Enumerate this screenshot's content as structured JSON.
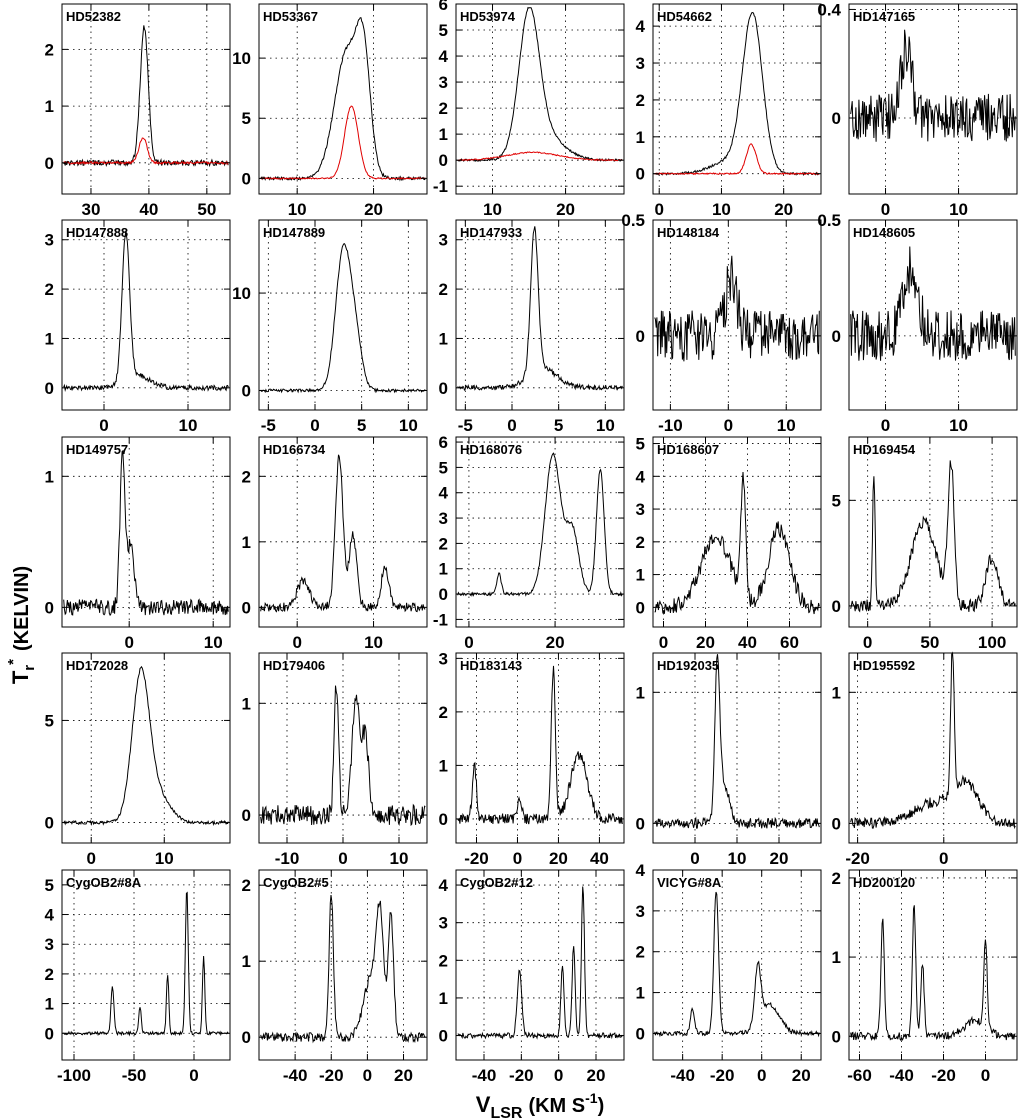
{
  "figure": {
    "y_axis_title": "T",
    "y_axis_title_sub": "r",
    "y_axis_title_sup": "*",
    "y_axis_title_unit": "(KELVIN)",
    "x_axis_title": "V",
    "x_axis_title_sub": "LSR",
    "x_axis_title_unit": "(KM S",
    "x_axis_title_sup": "-1",
    "x_axis_title_close": ")"
  },
  "chart_data": [
    {
      "type": "line",
      "title": "HD52382",
      "xlim": [
        25,
        54
      ],
      "ylim": [
        -0.55,
        2.8
      ],
      "xticks": [
        30,
        40,
        50
      ],
      "yticks": [
        0,
        1,
        2
      ],
      "series": [
        {
          "color": "#000000",
          "noise": 0.05,
          "peaks": [
            {
              "x": 39.2,
              "a": 2.4,
              "w": 0.7
            }
          ]
        },
        {
          "color": "#e00000",
          "noise": 0.02,
          "peaks": [
            {
              "x": 39.0,
              "a": 0.45,
              "w": 0.7
            }
          ]
        }
      ]
    },
    {
      "type": "line",
      "title": "HD53367",
      "xlim": [
        5,
        27
      ],
      "ylim": [
        -1.3,
        14.5
      ],
      "xticks": [
        10,
        20
      ],
      "yticks": [
        0,
        5,
        10
      ],
      "series": [
        {
          "color": "#000000",
          "noise": 0.12,
          "peaks": [
            {
              "x": 16.5,
              "a": 10.5,
              "w": 1.6
            },
            {
              "x": 18.7,
              "a": 8.5,
              "w": 0.9
            }
          ]
        },
        {
          "color": "#e00000",
          "noise": 0.05,
          "peaks": [
            {
              "x": 17.1,
              "a": 6.0,
              "w": 0.9
            }
          ]
        }
      ]
    },
    {
      "type": "line",
      "title": "HD53974",
      "xlim": [
        5,
        28
      ],
      "ylim": [
        -1.3,
        6.0
      ],
      "xticks": [
        10,
        20
      ],
      "yticks": [
        -1,
        0,
        1,
        2,
        3,
        4,
        5,
        6
      ],
      "series": [
        {
          "color": "#000000",
          "noise": 0.04,
          "peaks": [
            {
              "x": 15.0,
              "a": 5.3,
              "w": 1.4
            },
            {
              "x": 17.3,
              "a": 0.9,
              "w": 2.5
            }
          ]
        },
        {
          "color": "#e00000",
          "noise": 0.02,
          "peaks": [
            {
              "x": 15.5,
              "a": 0.3,
              "w": 3.5
            }
          ]
        }
      ]
    },
    {
      "type": "line",
      "title": "HD54662",
      "xlim": [
        -1,
        26
      ],
      "ylim": [
        -0.55,
        4.6
      ],
      "xticks": [
        0,
        10,
        20
      ],
      "yticks": [
        0,
        1,
        2,
        3,
        4
      ],
      "series": [
        {
          "color": "#000000",
          "noise": 0.03,
          "peaks": [
            {
              "x": 15.0,
              "a": 4.2,
              "w": 1.6
            },
            {
              "x": 11.5,
              "a": 0.35,
              "w": 3.0
            }
          ]
        },
        {
          "color": "#e00000",
          "noise": 0.02,
          "peaks": [
            {
              "x": 14.8,
              "a": 0.8,
              "w": 0.8
            }
          ]
        }
      ]
    },
    {
      "type": "line",
      "title": "HD147165",
      "xlim": [
        -5,
        18
      ],
      "ylim": [
        -0.28,
        0.42
      ],
      "xticks": [
        0,
        10
      ],
      "yticks": [
        0,
        0.4
      ],
      "series": [
        {
          "color": "#000000",
          "noise": 0.09,
          "peaks": [
            {
              "x": 2.8,
              "a": 0.25,
              "w": 0.8
            }
          ]
        }
      ]
    },
    {
      "type": "line",
      "title": "HD147888",
      "xlim": [
        -5,
        15
      ],
      "ylim": [
        -0.45,
        3.4
      ],
      "xticks": [
        0,
        10
      ],
      "yticks": [
        0,
        1,
        2,
        3
      ],
      "series": [
        {
          "color": "#000000",
          "noise": 0.05,
          "peaks": [
            {
              "x": 2.6,
              "a": 3.0,
              "w": 0.45
            },
            {
              "x": 4.0,
              "a": 0.25,
              "w": 1.5
            }
          ]
        }
      ]
    },
    {
      "type": "line",
      "title": "HD147889",
      "xlim": [
        -6,
        12
      ],
      "ylim": [
        -2,
        17.5
      ],
      "xticks": [
        -5,
        0,
        5,
        10
      ],
      "yticks": [
        0,
        10
      ],
      "series": [
        {
          "color": "#000000",
          "noise": 0.15,
          "peaks": [
            {
              "x": 3.0,
              "a": 14.0,
              "w": 0.8
            },
            {
              "x": 4.3,
              "a": 5.0,
              "w": 0.7
            }
          ]
        }
      ]
    },
    {
      "type": "line",
      "title": "HD147933",
      "xlim": [
        -6,
        12
      ],
      "ylim": [
        -0.45,
        3.4
      ],
      "xticks": [
        -5,
        0,
        5,
        10
      ],
      "yticks": [
        0,
        1,
        2,
        3
      ],
      "series": [
        {
          "color": "#000000",
          "noise": 0.05,
          "peaks": [
            {
              "x": 2.4,
              "a": 2.9,
              "w": 0.4
            },
            {
              "x": 3.3,
              "a": 0.4,
              "w": 1.5
            }
          ]
        }
      ]
    },
    {
      "type": "line",
      "title": "HD148184",
      "xlim": [
        -13,
        16
      ],
      "ylim": [
        -0.32,
        0.5
      ],
      "xticks": [
        -10,
        0,
        10
      ],
      "yticks": [
        0,
        0.5
      ],
      "series": [
        {
          "color": "#000000",
          "noise": 0.11,
          "peaks": [
            {
              "x": 0.5,
              "a": 0.25,
              "w": 1.0
            }
          ]
        }
      ]
    },
    {
      "type": "line",
      "title": "HD148605",
      "xlim": [
        -5,
        18
      ],
      "ylim": [
        -0.32,
        0.5
      ],
      "xticks": [
        0,
        10
      ],
      "yticks": [
        0,
        0.5
      ],
      "series": [
        {
          "color": "#000000",
          "noise": 0.11,
          "peaks": [
            {
              "x": 3.5,
              "a": 0.3,
              "w": 1.0
            }
          ]
        }
      ]
    },
    {
      "type": "line",
      "title": "HD149757",
      "xlim": [
        -8,
        12
      ],
      "ylim": [
        -0.15,
        1.3
      ],
      "xticks": [
        0,
        10
      ],
      "yticks": [
        0,
        1
      ],
      "series": [
        {
          "color": "#000000",
          "noise": 0.06,
          "peaks": [
            {
              "x": -0.8,
              "a": 1.15,
              "w": 0.3
            },
            {
              "x": 0.2,
              "a": 0.5,
              "w": 0.4
            }
          ]
        }
      ]
    },
    {
      "type": "line",
      "title": "HD166734",
      "xlim": [
        -5,
        17
      ],
      "ylim": [
        -0.3,
        2.6
      ],
      "xticks": [
        0,
        10
      ],
      "yticks": [
        0,
        1,
        2
      ],
      "series": [
        {
          "color": "#000000",
          "noise": 0.07,
          "peaks": [
            {
              "x": 5.5,
              "a": 2.3,
              "w": 0.5
            },
            {
              "x": 7.3,
              "a": 1.1,
              "w": 0.5
            },
            {
              "x": 11.5,
              "a": 0.6,
              "w": 0.5
            },
            {
              "x": 0.8,
              "a": 0.4,
              "w": 0.8
            }
          ]
        }
      ]
    },
    {
      "type": "line",
      "title": "HD168076",
      "xlim": [
        -3,
        36
      ],
      "ylim": [
        -1.3,
        6.2
      ],
      "xticks": [
        0,
        20
      ],
      "yticks": [
        -1,
        0,
        1,
        2,
        3,
        4,
        5,
        6
      ],
      "series": [
        {
          "color": "#000000",
          "noise": 0.06,
          "peaks": [
            {
              "x": 19.5,
              "a": 5.5,
              "w": 1.8
            },
            {
              "x": 24.0,
              "a": 2.5,
              "w": 1.5
            },
            {
              "x": 30.5,
              "a": 4.9,
              "w": 0.9
            },
            {
              "x": 7.0,
              "a": 0.8,
              "w": 0.5
            }
          ]
        }
      ]
    },
    {
      "type": "line",
      "title": "HD168607",
      "xlim": [
        -5,
        75
      ],
      "ylim": [
        -0.6,
        5.2
      ],
      "xticks": [
        0,
        20,
        40,
        60
      ],
      "yticks": [
        0,
        1,
        2,
        3,
        4,
        5
      ],
      "series": [
        {
          "color": "#000000",
          "noise": 0.25,
          "peaks": [
            {
              "x": 25,
              "a": 2.2,
              "w": 7
            },
            {
              "x": 38,
              "a": 3.5,
              "w": 1.2
            },
            {
              "x": 55,
              "a": 2.4,
              "w": 5
            }
          ]
        }
      ]
    },
    {
      "type": "line",
      "title": "HD169454",
      "xlim": [
        -15,
        120
      ],
      "ylim": [
        -1.0,
        8.0
      ],
      "xticks": [
        0,
        50,
        100
      ],
      "yticks": [
        0,
        5
      ],
      "series": [
        {
          "color": "#000000",
          "noise": 0.3,
          "peaks": [
            {
              "x": 5,
              "a": 6.3,
              "w": 1
            },
            {
              "x": 45,
              "a": 4.0,
              "w": 10
            },
            {
              "x": 67,
              "a": 6.5,
              "w": 2.5
            },
            {
              "x": 100,
              "a": 2.3,
              "w": 5
            }
          ]
        }
      ]
    },
    {
      "type": "line",
      "title": "HD172028",
      "xlim": [
        -4,
        19
      ],
      "ylim": [
        -1.0,
        8.3
      ],
      "xticks": [
        0,
        10
      ],
      "yticks": [
        0,
        5
      ],
      "series": [
        {
          "color": "#000000",
          "noise": 0.08,
          "peaks": [
            {
              "x": 6.8,
              "a": 7.3,
              "w": 1.2
            },
            {
              "x": 9.5,
              "a": 1.2,
              "w": 1.5
            }
          ]
        }
      ]
    },
    {
      "type": "line",
      "title": "HD179406",
      "xlim": [
        -15,
        15
      ],
      "ylim": [
        -0.25,
        1.45
      ],
      "xticks": [
        -10,
        0,
        10
      ],
      "yticks": [
        0,
        1
      ],
      "series": [
        {
          "color": "#000000",
          "noise": 0.09,
          "peaks": [
            {
              "x": -1.2,
              "a": 1.15,
              "w": 0.4
            },
            {
              "x": 2.3,
              "a": 1.05,
              "w": 0.7
            },
            {
              "x": 4.0,
              "a": 0.7,
              "w": 0.6
            }
          ]
        }
      ]
    },
    {
      "type": "line",
      "title": "HD183143",
      "xlim": [
        -30,
        52
      ],
      "ylim": [
        -0.45,
        3.1
      ],
      "xticks": [
        -20,
        0,
        20,
        40
      ],
      "yticks": [
        0,
        1,
        2,
        3
      ],
      "series": [
        {
          "color": "#000000",
          "noise": 0.1,
          "peaks": [
            {
              "x": -21,
              "a": 1.0,
              "w": 1
            },
            {
              "x": 1,
              "a": 0.4,
              "w": 1
            },
            {
              "x": 17.5,
              "a": 2.8,
              "w": 1
            },
            {
              "x": 30,
              "a": 1.2,
              "w": 4
            }
          ]
        }
      ]
    },
    {
      "type": "line",
      "title": "HD192035",
      "xlim": [
        -10,
        30
      ],
      "ylim": [
        -0.15,
        1.3
      ],
      "xticks": [
        0,
        10,
        20
      ],
      "yticks": [
        0,
        1
      ],
      "series": [
        {
          "color": "#000000",
          "noise": 0.04,
          "peaks": [
            {
              "x": 5.3,
              "a": 1.15,
              "w": 0.6
            },
            {
              "x": 7.0,
              "a": 0.3,
              "w": 1.2
            }
          ]
        }
      ]
    },
    {
      "type": "line",
      "title": "HD195592",
      "xlim": [
        -22,
        17
      ],
      "ylim": [
        -0.15,
        1.3
      ],
      "xticks": [
        -20,
        0
      ],
      "yticks": [
        0,
        1
      ],
      "series": [
        {
          "color": "#000000",
          "noise": 0.04,
          "peaks": [
            {
              "x": 2,
              "a": 1.1,
              "w": 0.4
            },
            {
              "x": 5,
              "a": 0.3,
              "w": 3
            },
            {
              "x": -3,
              "a": 0.15,
              "w": 4
            }
          ]
        }
      ]
    },
    {
      "type": "line",
      "title": "CygOB2#8A",
      "xlim": [
        -110,
        30
      ],
      "ylim": [
        -0.9,
        5.5
      ],
      "xticks": [
        -100,
        -50,
        0
      ],
      "yticks": [
        0,
        1,
        2,
        3,
        4,
        5
      ],
      "series": [
        {
          "color": "#000000",
          "noise": 0.05,
          "peaks": [
            {
              "x": -68,
              "a": 1.6,
              "w": 1.2
            },
            {
              "x": -45,
              "a": 0.9,
              "w": 1
            },
            {
              "x": -22,
              "a": 2.0,
              "w": 1
            },
            {
              "x": -6,
              "a": 4.9,
              "w": 1.2
            },
            {
              "x": 8,
              "a": 2.6,
              "w": 1
            }
          ]
        }
      ]
    },
    {
      "type": "line",
      "title": "CygOB2#5",
      "xlim": [
        -60,
        33
      ],
      "ylim": [
        -0.3,
        2.2
      ],
      "xticks": [
        -40,
        -20,
        0,
        20
      ],
      "yticks": [
        0,
        1,
        2
      ],
      "series": [
        {
          "color": "#000000",
          "noise": 0.06,
          "peaks": [
            {
              "x": -20,
              "a": 1.9,
              "w": 1.2
            },
            {
              "x": 2,
              "a": 0.8,
              "w": 4
            },
            {
              "x": 7,
              "a": 1.4,
              "w": 2
            },
            {
              "x": 13,
              "a": 1.6,
              "w": 1.5
            }
          ]
        }
      ]
    },
    {
      "type": "line",
      "title": "CygOB2#12",
      "xlim": [
        -55,
        35
      ],
      "ylim": [
        -0.65,
        4.4
      ],
      "xticks": [
        -40,
        -20,
        0,
        20
      ],
      "yticks": [
        0,
        1,
        2,
        3,
        4
      ],
      "series": [
        {
          "color": "#000000",
          "noise": 0.07,
          "peaks": [
            {
              "x": -21,
              "a": 1.7,
              "w": 1.2
            },
            {
              "x": 2,
              "a": 1.9,
              "w": 0.8
            },
            {
              "x": 8,
              "a": 2.4,
              "w": 0.8
            },
            {
              "x": 13,
              "a": 4.0,
              "w": 0.8
            }
          ]
        }
      ]
    },
    {
      "type": "line",
      "title": "VICYG#8A",
      "xlim": [
        -55,
        30
      ],
      "ylim": [
        -0.65,
        4.0
      ],
      "xticks": [
        -40,
        -20,
        0,
        20
      ],
      "yticks": [
        0,
        1,
        2,
        3,
        4
      ],
      "series": [
        {
          "color": "#000000",
          "noise": 0.05,
          "peaks": [
            {
              "x": -35,
              "a": 0.6,
              "w": 1
            },
            {
              "x": -23,
              "a": 3.5,
              "w": 1.2
            },
            {
              "x": -2,
              "a": 1.4,
              "w": 1.5
            },
            {
              "x": 4,
              "a": 0.7,
              "w": 5
            }
          ]
        }
      ]
    },
    {
      "type": "line",
      "title": "HD200120",
      "xlim": [
        -65,
        15
      ],
      "ylim": [
        -0.3,
        2.1
      ],
      "xticks": [
        -60,
        -40,
        -20,
        0
      ],
      "yticks": [
        0,
        1,
        2
      ],
      "series": [
        {
          "color": "#000000",
          "noise": 0.05,
          "peaks": [
            {
              "x": -49,
              "a": 1.5,
              "w": 0.8
            },
            {
              "x": -34,
              "a": 1.65,
              "w": 0.8
            },
            {
              "x": -30,
              "a": 0.9,
              "w": 0.8
            },
            {
              "x": 0,
              "a": 1.1,
              "w": 0.8
            },
            {
              "x": -5,
              "a": 0.2,
              "w": 5
            }
          ]
        }
      ]
    }
  ]
}
